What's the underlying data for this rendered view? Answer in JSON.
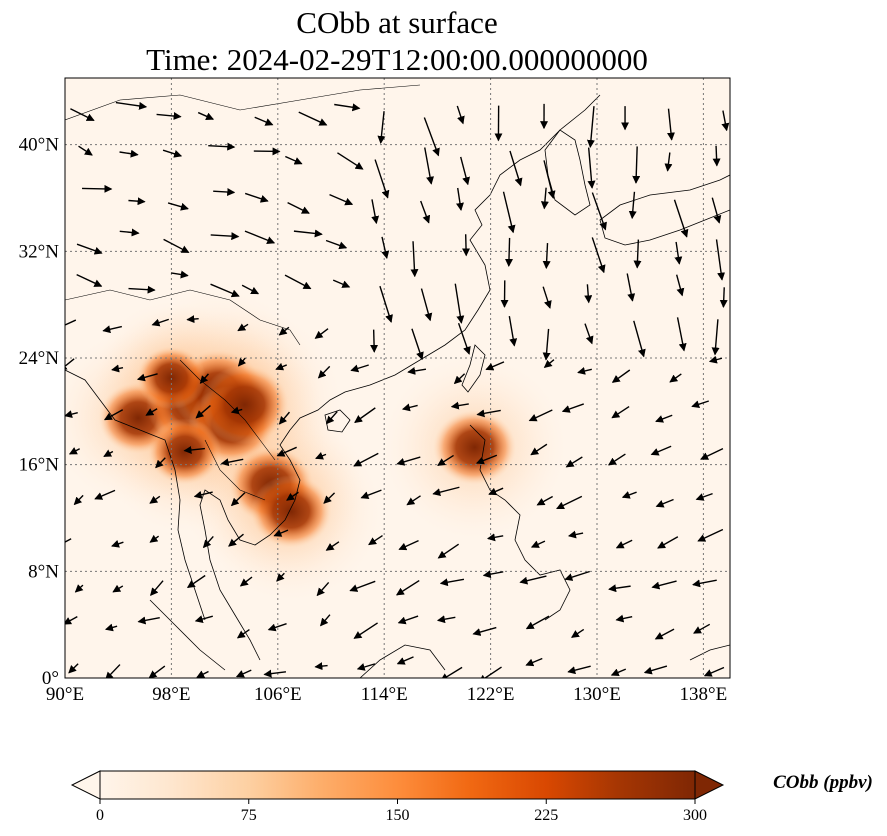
{
  "title": {
    "line1": "CObb at surface",
    "line2": "Time: 2024-02-29T12:00:00.000000000"
  },
  "map": {
    "lon_range": [
      90,
      140
    ],
    "lat_range": [
      0,
      45
    ],
    "lon_ticks": [
      {
        "value": 90,
        "label": "90°E"
      },
      {
        "value": 98,
        "label": "98°E"
      },
      {
        "value": 106,
        "label": "106°E"
      },
      {
        "value": 114,
        "label": "114°E"
      },
      {
        "value": 122,
        "label": "122°E"
      },
      {
        "value": 130,
        "label": "130°E"
      },
      {
        "value": 138,
        "label": "138°E"
      }
    ],
    "lat_ticks": [
      {
        "value": 0,
        "label": "0°"
      },
      {
        "value": 8,
        "label": "8°N"
      },
      {
        "value": 16,
        "label": "16°N"
      },
      {
        "value": 24,
        "label": "24°N"
      },
      {
        "value": 32,
        "label": "32°N"
      },
      {
        "value": 40,
        "label": "40°N"
      }
    ],
    "gridlines": true,
    "hotspots": [
      {
        "lon": 95.5,
        "lat": 19.5,
        "value": 230
      },
      {
        "lon": 99.5,
        "lat": 20.5,
        "value": 290
      },
      {
        "lon": 101.5,
        "lat": 21.5,
        "value": 300
      },
      {
        "lon": 102.5,
        "lat": 19.0,
        "value": 270
      },
      {
        "lon": 103.5,
        "lat": 20.5,
        "value": 280
      },
      {
        "lon": 99.0,
        "lat": 17.0,
        "value": 200
      },
      {
        "lon": 105.5,
        "lat": 14.5,
        "value": 260
      },
      {
        "lon": 107.0,
        "lat": 12.5,
        "value": 240
      },
      {
        "lon": 98.0,
        "lat": 22.5,
        "value": 180
      },
      {
        "lon": 120.8,
        "lat": 17.3,
        "value": 250
      }
    ]
  },
  "colorbar": {
    "label": "CObb (ppbv)",
    "min": 0,
    "max": 300,
    "ticks": [
      "0",
      "75",
      "150",
      "225",
      "300"
    ],
    "tick_values": [
      0,
      75,
      150,
      225,
      300
    ],
    "colors": [
      "#fff5eb",
      "#fee6ce",
      "#fdd0a2",
      "#fdae6b",
      "#fd8d3c",
      "#f16913",
      "#d94801",
      "#a63603",
      "#7f2704"
    ]
  }
}
